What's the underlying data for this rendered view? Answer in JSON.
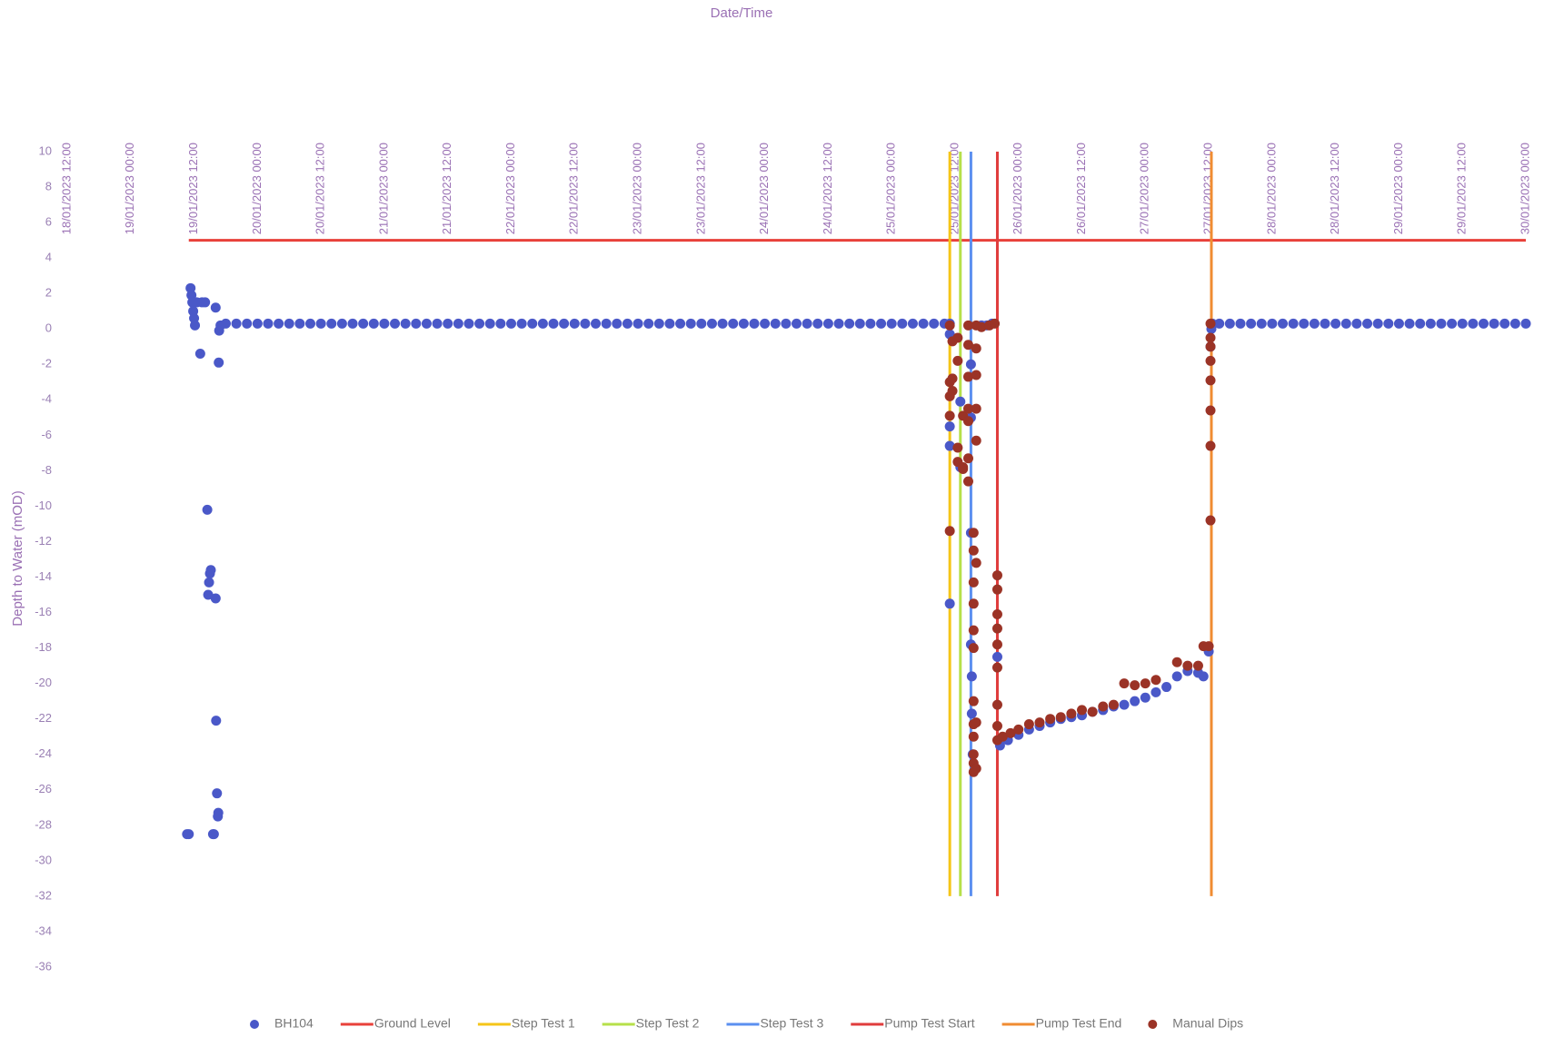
{
  "chart_data": {
    "type": "scatter",
    "title": "Date/Time",
    "y_label": "Depth to Water (mOD)",
    "xlim": [
      "2023-01-18T12:00",
      "2023-01-30T00:00"
    ],
    "xticks": [
      {
        "value": "2023-01-18T12:00",
        "label": "18/01/2023 12:00"
      },
      {
        "value": "2023-01-19T00:00",
        "label": "19/01/2023 00:00"
      },
      {
        "value": "2023-01-19T12:00",
        "label": "19/01/2023 12:00"
      },
      {
        "value": "2023-01-20T00:00",
        "label": "20/01/2023 00:00"
      },
      {
        "value": "2023-01-20T12:00",
        "label": "20/01/2023 12:00"
      },
      {
        "value": "2023-01-21T00:00",
        "label": "21/01/2023 00:00"
      },
      {
        "value": "2023-01-21T12:00",
        "label": "21/01/2023 12:00"
      },
      {
        "value": "2023-01-22T00:00",
        "label": "22/01/2023 00:00"
      },
      {
        "value": "2023-01-22T12:00",
        "label": "22/01/2023 12:00"
      },
      {
        "value": "2023-01-23T00:00",
        "label": "23/01/2023 00:00"
      },
      {
        "value": "2023-01-23T12:00",
        "label": "23/01/2023 12:00"
      },
      {
        "value": "2023-01-24T00:00",
        "label": "24/01/2023 00:00"
      },
      {
        "value": "2023-01-24T12:00",
        "label": "24/01/2023 12:00"
      },
      {
        "value": "2023-01-25T00:00",
        "label": "25/01/2023 00:00"
      },
      {
        "value": "2023-01-25T12:00",
        "label": "25/01/2023 12:00"
      },
      {
        "value": "2023-01-26T00:00",
        "label": "26/01/2023 00:00"
      },
      {
        "value": "2023-01-26T12:00",
        "label": "26/01/2023 12:00"
      },
      {
        "value": "2023-01-27T00:00",
        "label": "27/01/2023 00:00"
      },
      {
        "value": "2023-01-27T12:00",
        "label": "27/01/2023 12:00"
      },
      {
        "value": "2023-01-28T00:00",
        "label": "28/01/2023 00:00"
      },
      {
        "value": "2023-01-28T12:00",
        "label": "28/01/2023 12:00"
      },
      {
        "value": "2023-01-29T00:00",
        "label": "29/01/2023 00:00"
      },
      {
        "value": "2023-01-29T12:00",
        "label": "29/01/2023 12:00"
      },
      {
        "value": "2023-01-30T00:00",
        "label": "30/01/2023 00:00"
      }
    ],
    "ylim": [
      -36,
      10
    ],
    "yticks": [
      10,
      8,
      6,
      4,
      2,
      0,
      -2,
      -4,
      -6,
      -8,
      -10,
      -12,
      -14,
      -16,
      -18,
      -20,
      -22,
      -24,
      -26,
      -28,
      -30,
      -32,
      -34,
      -36
    ],
    "grid": false,
    "legend": "bottom",
    "series": [
      {
        "name": "BH104",
        "type": "scatter",
        "color": "#4a58c8",
        "x": [
          "2023-01-19T10:40",
          "2023-01-19T11:00",
          "2023-01-19T11:20",
          "2023-01-19T11:30",
          "2023-01-19T11:40",
          "2023-01-19T11:50",
          "2023-01-19T12:00",
          "2023-01-19T12:10",
          "2023-01-19T12:30",
          "2023-01-19T13:10",
          "2023-01-19T13:30",
          "2023-01-19T14:05",
          "2023-01-19T14:30",
          "2023-01-19T14:40",
          "2023-01-19T14:50",
          "2023-01-19T15:00",
          "2023-01-19T15:10",
          "2023-01-19T15:35",
          "2023-01-19T15:45",
          "2023-01-19T16:05",
          "2023-01-19T16:05",
          "2023-01-19T16:10",
          "2023-01-19T16:20",
          "2023-01-19T16:30",
          "2023-01-19T16:35",
          "2023-01-19T16:40",
          "2023-01-19T16:45",
          "2023-01-19T17:00",
          "2023-01-19T18:00",
          "2023-01-19T20:00",
          "2023-01-19T22:00",
          "2023-01-20T00:00",
          "2023-01-20T02:00",
          "2023-01-20T04:00",
          "2023-01-20T06:00",
          "2023-01-20T08:00",
          "2023-01-20T10:00",
          "2023-01-20T12:00",
          "2023-01-20T14:00",
          "2023-01-20T16:00",
          "2023-01-20T18:00",
          "2023-01-20T20:00",
          "2023-01-20T22:00",
          "2023-01-21T00:00",
          "2023-01-21T02:00",
          "2023-01-21T04:00",
          "2023-01-21T06:00",
          "2023-01-21T08:00",
          "2023-01-21T10:00",
          "2023-01-21T12:00",
          "2023-01-21T14:00",
          "2023-01-21T16:00",
          "2023-01-21T18:00",
          "2023-01-21T20:00",
          "2023-01-21T22:00",
          "2023-01-22T00:00",
          "2023-01-22T02:00",
          "2023-01-22T04:00",
          "2023-01-22T06:00",
          "2023-01-22T08:00",
          "2023-01-22T10:00",
          "2023-01-22T12:00",
          "2023-01-22T14:00",
          "2023-01-22T16:00",
          "2023-01-22T18:00",
          "2023-01-22T20:00",
          "2023-01-22T22:00",
          "2023-01-23T00:00",
          "2023-01-23T02:00",
          "2023-01-23T04:00",
          "2023-01-23T06:00",
          "2023-01-23T08:00",
          "2023-01-23T10:00",
          "2023-01-23T12:00",
          "2023-01-23T14:00",
          "2023-01-23T16:00",
          "2023-01-23T18:00",
          "2023-01-23T20:00",
          "2023-01-23T22:00",
          "2023-01-24T00:00",
          "2023-01-24T02:00",
          "2023-01-24T04:00",
          "2023-01-24T06:00",
          "2023-01-24T08:00",
          "2023-01-24T10:00",
          "2023-01-24T12:00",
          "2023-01-24T14:00",
          "2023-01-24T16:00",
          "2023-01-24T18:00",
          "2023-01-24T20:00",
          "2023-01-24T22:00",
          "2023-01-25T00:00",
          "2023-01-25T02:00",
          "2023-01-25T04:00",
          "2023-01-25T06:00",
          "2023-01-25T08:00",
          "2023-01-25T10:00",
          "2023-01-25T11:00",
          "2023-01-25T11:00",
          "2023-01-25T11:00",
          "2023-01-25T11:00",
          "2023-01-25T11:00",
          "2023-01-25T13:00",
          "2023-01-25T13:00",
          "2023-01-25T15:00",
          "2023-01-25T15:00",
          "2023-01-25T15:00",
          "2023-01-25T15:00",
          "2023-01-25T15:10",
          "2023-01-25T15:10",
          "2023-01-25T15:20",
          "2023-01-25T17:00",
          "2023-01-25T18:00",
          "2023-01-25T19:00",
          "2023-01-25T20:00",
          "2023-01-25T20:30",
          "2023-01-25T22:00",
          "2023-01-26T00:00",
          "2023-01-26T02:00",
          "2023-01-26T04:00",
          "2023-01-26T06:00",
          "2023-01-26T08:00",
          "2023-01-26T10:00",
          "2023-01-26T12:00",
          "2023-01-26T14:00",
          "2023-01-26T16:00",
          "2023-01-26T18:00",
          "2023-01-26T20:00",
          "2023-01-26T22:00",
          "2023-01-27T00:00",
          "2023-01-27T02:00",
          "2023-01-27T04:00",
          "2023-01-27T06:00",
          "2023-01-27T08:00",
          "2023-01-27T10:00",
          "2023-01-27T11:00",
          "2023-01-27T12:00",
          "2023-01-27T12:20",
          "2023-01-27T12:30",
          "2023-01-27T12:40",
          "2023-01-27T14:00",
          "2023-01-27T16:00",
          "2023-01-27T18:00",
          "2023-01-27T20:00",
          "2023-01-27T22:00",
          "2023-01-28T00:00",
          "2023-01-28T02:00",
          "2023-01-28T04:00",
          "2023-01-28T06:00",
          "2023-01-28T08:00",
          "2023-01-28T10:00",
          "2023-01-28T12:00",
          "2023-01-28T14:00",
          "2023-01-28T16:00",
          "2023-01-28T18:00",
          "2023-01-28T20:00",
          "2023-01-28T22:00",
          "2023-01-29T00:00",
          "2023-01-29T02:00",
          "2023-01-29T04:00",
          "2023-01-29T06:00",
          "2023-01-29T08:00",
          "2023-01-29T10:00",
          "2023-01-29T12:00",
          "2023-01-29T14:00",
          "2023-01-29T16:00",
          "2023-01-29T18:00",
          "2023-01-29T20:00",
          "2023-01-29T22:00",
          "2023-01-30T00:00"
        ],
        "values": [
          -28.5,
          -28.5,
          2.3,
          1.9,
          1.5,
          1.0,
          0.6,
          0.2,
          1.5,
          -1.4,
          1.5,
          1.5,
          -10.2,
          -15.0,
          -14.3,
          -13.8,
          -13.6,
          -28.5,
          -28.5,
          -15.2,
          1.2,
          -22.1,
          -26.2,
          -27.5,
          -27.3,
          -1.9,
          -0.1,
          0.2,
          0.3,
          0.3,
          0.3,
          0.3,
          0.3,
          0.3,
          0.3,
          0.3,
          0.3,
          0.3,
          0.3,
          0.3,
          0.3,
          0.3,
          0.3,
          0.3,
          0.3,
          0.3,
          0.3,
          0.3,
          0.3,
          0.3,
          0.3,
          0.3,
          0.3,
          0.3,
          0.3,
          0.3,
          0.3,
          0.3,
          0.3,
          0.3,
          0.3,
          0.3,
          0.3,
          0.3,
          0.3,
          0.3,
          0.3,
          0.3,
          0.3,
          0.3,
          0.3,
          0.3,
          0.3,
          0.3,
          0.3,
          0.3,
          0.3,
          0.3,
          0.3,
          0.3,
          0.3,
          0.3,
          0.3,
          0.3,
          0.3,
          0.3,
          0.3,
          0.3,
          0.3,
          0.3,
          0.3,
          0.3,
          0.3,
          0.3,
          0.3,
          0.3,
          0.3,
          0.3,
          -0.3,
          -5.5,
          -6.6,
          -15.5,
          -4.1,
          -7.8,
          -2.0,
          -5.0,
          -11.5,
          -17.8,
          -19.6,
          -21.7,
          -24.0,
          0.2,
          0.2,
          0.3,
          -18.5,
          -23.5,
          -23.2,
          -22.9,
          -22.6,
          -22.4,
          -22.2,
          -22.0,
          -21.9,
          -21.8,
          -21.6,
          -21.5,
          -21.3,
          -21.2,
          -21.0,
          -20.8,
          -20.5,
          -20.2,
          -19.6,
          -19.3,
          -19.4,
          -19.6,
          -18.2,
          -1.0,
          0.0,
          0.3,
          0.3,
          0.3,
          0.3,
          0.3,
          0.3,
          0.3,
          0.3,
          0.3,
          0.3,
          0.3,
          0.3,
          0.3,
          0.3,
          0.3,
          0.3,
          0.3,
          0.3,
          0.3,
          0.3,
          0.3,
          0.3,
          0.3,
          0.3,
          0.3,
          0.3,
          0.3,
          0.3,
          0.3,
          0.3,
          0.3
        ]
      },
      {
        "name": "Ground Level",
        "type": "line",
        "color": "#e8413a",
        "x": [
          "2023-01-19T11:00",
          "2023-01-30T00:00"
        ],
        "values": [
          5,
          5
        ]
      },
      {
        "name": "Step Test 1",
        "type": "line",
        "color": "#f5c518",
        "x": [
          "2023-01-25T11:00",
          "2023-01-25T11:00"
        ],
        "values": [
          -32,
          10
        ]
      },
      {
        "name": "Step Test 2",
        "type": "line",
        "color": "#b6e04a",
        "x": [
          "2023-01-25T13:00",
          "2023-01-25T13:00"
        ],
        "values": [
          -32,
          10
        ]
      },
      {
        "name": "Step Test 3",
        "type": "line",
        "color": "#5b8ff0",
        "x": [
          "2023-01-25T15:00",
          "2023-01-25T15:00"
        ],
        "values": [
          -32,
          10
        ]
      },
      {
        "name": "Pump Test Start",
        "type": "line",
        "color": "#e03c3c",
        "x": [
          "2023-01-25T20:00",
          "2023-01-25T20:00"
        ],
        "values": [
          -32,
          10
        ]
      },
      {
        "name": "Pump Test End",
        "type": "line",
        "color": "#f08c32",
        "x": [
          "2023-01-27T12:30",
          "2023-01-27T12:30"
        ],
        "values": [
          -32,
          10
        ]
      },
      {
        "name": "Manual Dips",
        "type": "scatter",
        "color": "#9b3326",
        "x": [
          "2023-01-25T11:00",
          "2023-01-25T11:00",
          "2023-01-25T11:00",
          "2023-01-25T11:00",
          "2023-01-25T11:00",
          "2023-01-25T11:30",
          "2023-01-25T11:30",
          "2023-01-25T11:30",
          "2023-01-25T12:30",
          "2023-01-25T12:30",
          "2023-01-25T12:30",
          "2023-01-25T12:30",
          "2023-01-25T13:30",
          "2023-01-25T13:30",
          "2023-01-25T13:30",
          "2023-01-25T14:30",
          "2023-01-25T14:30",
          "2023-01-25T14:30",
          "2023-01-25T14:30",
          "2023-01-25T14:30",
          "2023-01-25T14:30",
          "2023-01-25T14:30",
          "2023-01-25T15:30",
          "2023-01-25T15:30",
          "2023-01-25T15:30",
          "2023-01-25T15:30",
          "2023-01-25T15:30",
          "2023-01-25T15:30",
          "2023-01-25T15:30",
          "2023-01-25T15:30",
          "2023-01-25T15:30",
          "2023-01-25T15:30",
          "2023-01-25T15:30",
          "2023-01-25T15:30",
          "2023-01-25T16:00",
          "2023-01-25T16:00",
          "2023-01-25T16:00",
          "2023-01-25T16:00",
          "2023-01-25T16:00",
          "2023-01-25T16:00",
          "2023-01-25T16:00",
          "2023-01-25T16:00",
          "2023-01-25T17:00",
          "2023-01-25T18:30",
          "2023-01-25T19:30",
          "2023-01-25T20:00",
          "2023-01-25T20:00",
          "2023-01-25T20:00",
          "2023-01-25T20:00",
          "2023-01-25T20:00",
          "2023-01-25T20:00",
          "2023-01-25T20:00",
          "2023-01-25T20:00",
          "2023-01-25T20:00",
          "2023-01-25T21:00",
          "2023-01-25T22:30",
          "2023-01-26T00:00",
          "2023-01-26T02:00",
          "2023-01-26T04:00",
          "2023-01-26T06:00",
          "2023-01-26T08:00",
          "2023-01-26T10:00",
          "2023-01-26T12:00",
          "2023-01-26T14:00",
          "2023-01-26T16:00",
          "2023-01-26T18:00",
          "2023-01-26T20:00",
          "2023-01-26T22:00",
          "2023-01-27T00:00",
          "2023-01-27T02:00",
          "2023-01-27T06:00",
          "2023-01-27T08:00",
          "2023-01-27T10:00",
          "2023-01-27T11:00",
          "2023-01-27T12:00",
          "2023-01-27T12:20",
          "2023-01-27T12:20",
          "2023-01-27T12:20",
          "2023-01-27T12:20",
          "2023-01-27T12:20",
          "2023-01-27T12:20",
          "2023-01-27T12:20",
          "2023-01-27T12:20"
        ],
        "values": [
          0.2,
          -3.8,
          -3.0,
          -4.9,
          -11.4,
          -0.7,
          -2.8,
          -3.5,
          -1.8,
          -0.5,
          -6.7,
          -7.5,
          -7.9,
          -7.8,
          -4.9,
          0.2,
          -0.9,
          -2.7,
          -4.5,
          -7.3,
          -8.6,
          -5.2,
          -11.5,
          -12.5,
          -14.3,
          -15.5,
          -17.0,
          -18.0,
          -21.0,
          -22.3,
          -23.0,
          -24.0,
          -24.5,
          -25.0,
          0.2,
          -1.1,
          -2.6,
          -4.5,
          -6.3,
          -13.2,
          -22.2,
          -24.8,
          0.1,
          0.2,
          0.3,
          -13.9,
          -14.7,
          -16.1,
          -16.9,
          -17.8,
          -19.1,
          -21.2,
          -22.4,
          -23.2,
          -23.0,
          -22.8,
          -22.6,
          -22.3,
          -22.2,
          -22.0,
          -21.9,
          -21.7,
          -21.5,
          -21.6,
          -21.3,
          -21.2,
          -20.0,
          -20.1,
          -20.0,
          -19.8,
          -18.8,
          -19.0,
          -19.0,
          -17.9,
          -17.9,
          -10.8,
          -6.6,
          -4.6,
          -2.9,
          -1.8,
          -1.0,
          -0.5,
          0.3
        ]
      }
    ]
  }
}
